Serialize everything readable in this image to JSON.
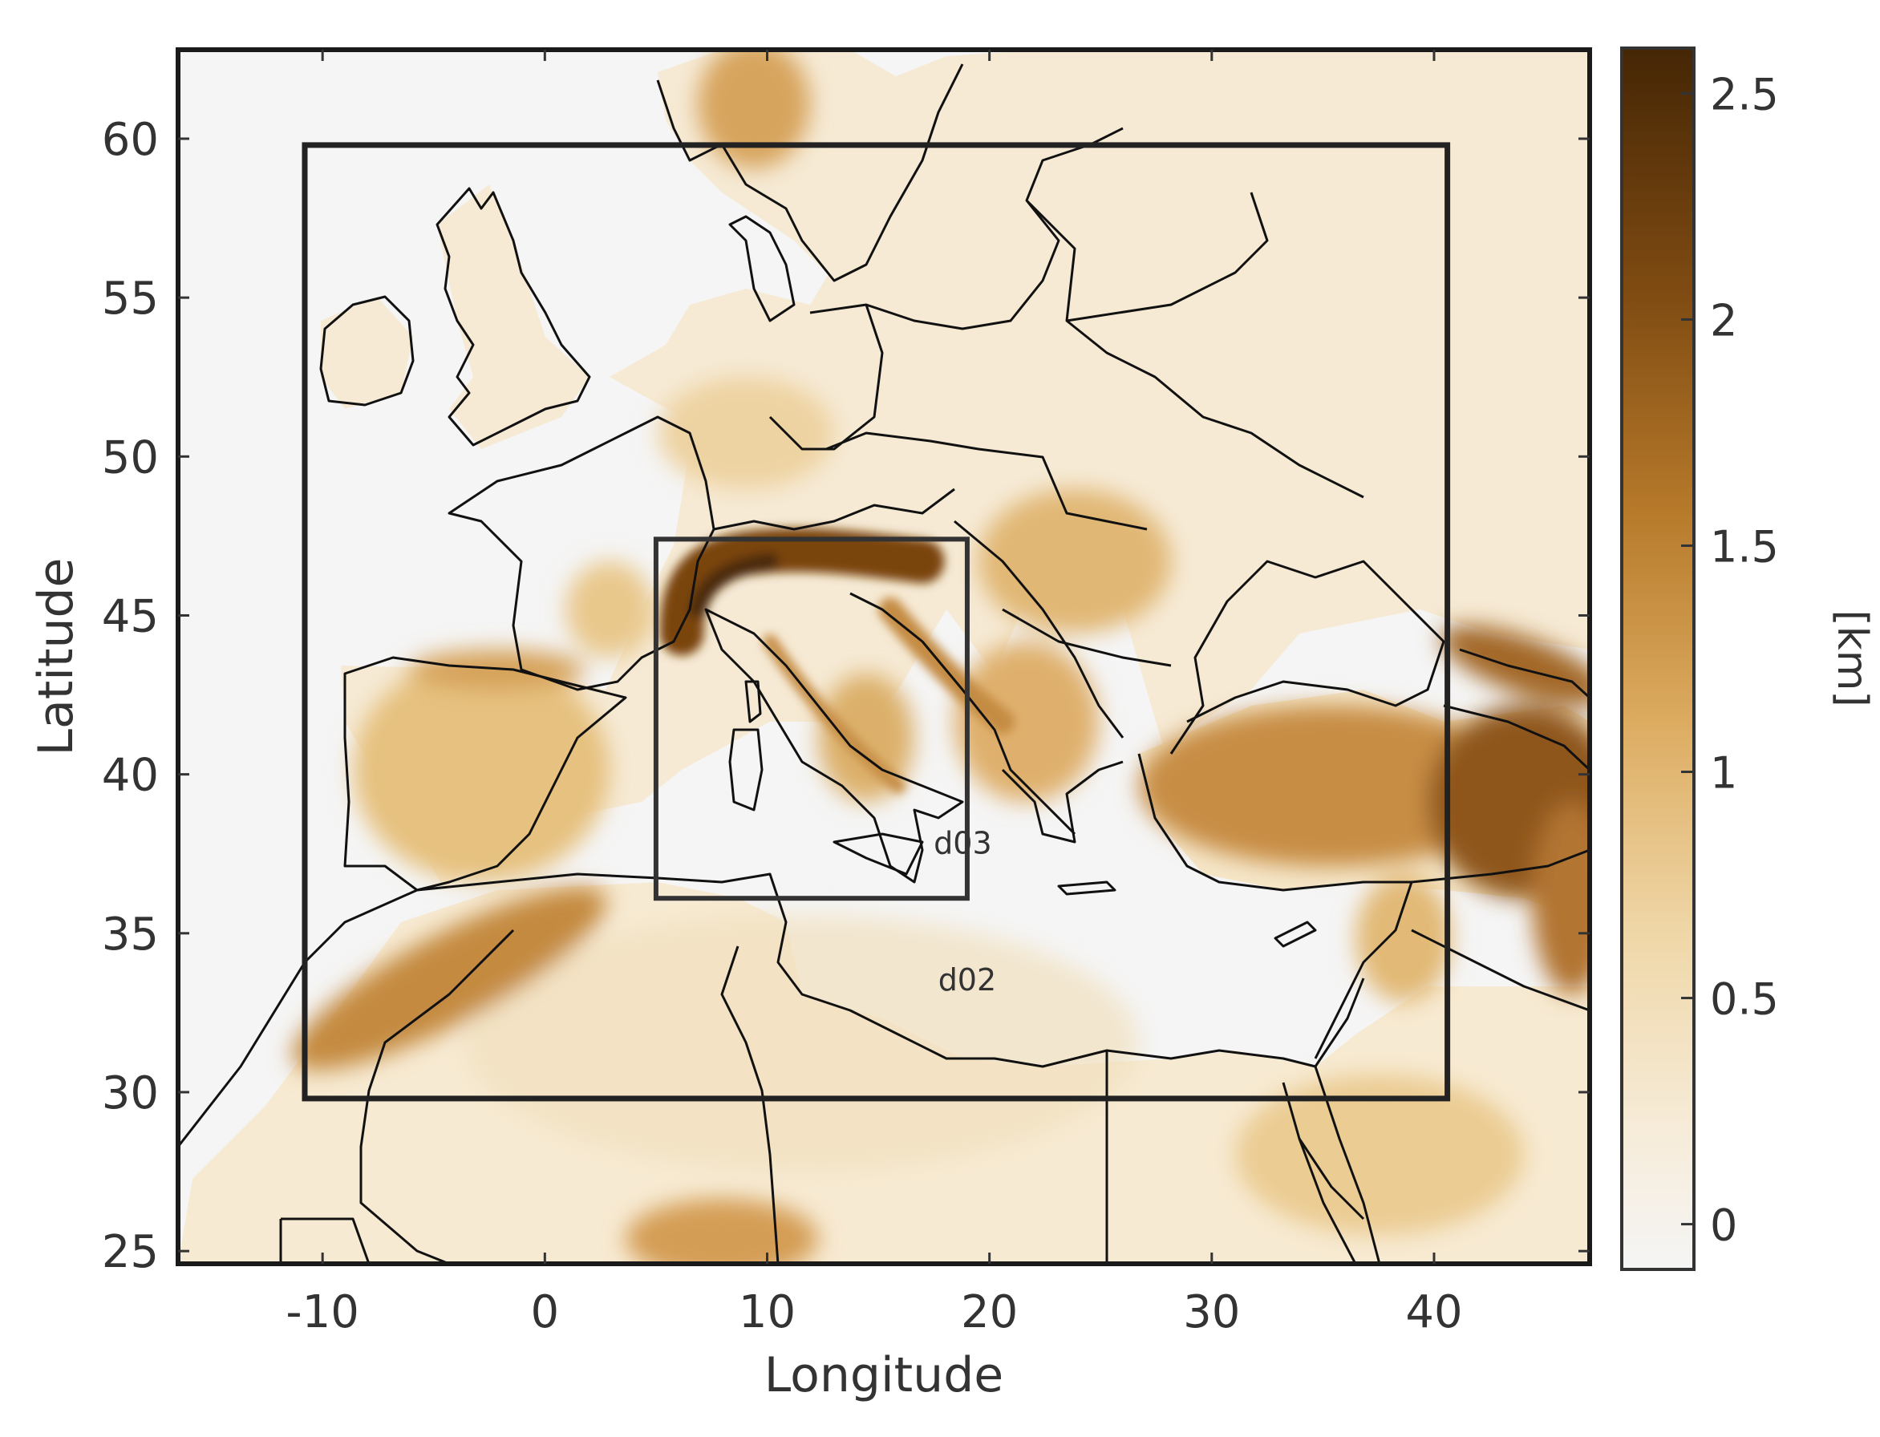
{
  "map": {
    "xlabel": "Longitude",
    "ylabel": "Latitude",
    "xlim": [
      -16.5,
      47
    ],
    "ylim": [
      24.6,
      62.8
    ],
    "xticks": [
      -10,
      0,
      10,
      20,
      30,
      40
    ],
    "yticks": [
      25,
      30,
      35,
      40,
      45,
      50,
      55,
      60
    ],
    "xtick_labels": [
      "-10",
      "0",
      "10",
      "20",
      "30",
      "40"
    ],
    "ytick_labels": [
      "25",
      "30",
      "35",
      "40",
      "45",
      "50",
      "55",
      "60"
    ],
    "domains": [
      {
        "label": "d02",
        "lon": [
          -10.8,
          40.6
        ],
        "lat": [
          29.8,
          59.8
        ]
      },
      {
        "label": "d03",
        "lon": [
          5.0,
          19.0
        ],
        "lat": [
          36.1,
          47.4
        ]
      }
    ],
    "terrain_colors": [
      "#f5f5f5",
      "#f6ebd7",
      "#efd6a6",
      "#dcab60",
      "#b77a2b",
      "#7f4b12",
      "#452605"
    ]
  },
  "colorbar": {
    "label": "[km]",
    "min": -0.1,
    "max": 2.6,
    "ticks": [
      0,
      0.5,
      1,
      1.5,
      2,
      2.5
    ],
    "tick_labels": [
      "0",
      "0.5",
      "1",
      "1.5",
      "2",
      "2.5"
    ]
  }
}
